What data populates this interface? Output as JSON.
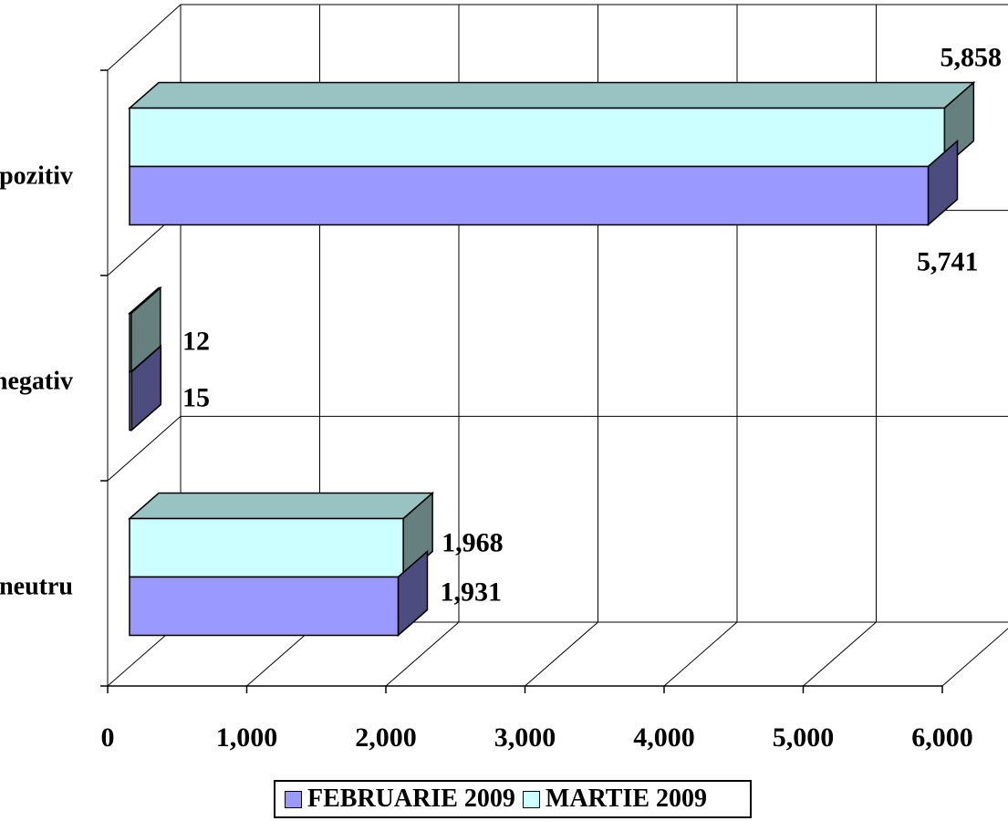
{
  "chart_data": {
    "type": "bar",
    "orientation": "horizontal",
    "categories": [
      "neutru",
      "negativ",
      "pozitiv"
    ],
    "series": [
      {
        "name": "FEBRUARIE 2009",
        "values": [
          1931,
          15,
          5741
        ],
        "labels": [
          "1,931",
          "15",
          "5,741"
        ],
        "color": "#9999ff",
        "side_color": "#4c4c7f"
      },
      {
        "name": "MARTIE 2009",
        "values": [
          1968,
          12,
          5858
        ],
        "labels": [
          "1,968",
          "12",
          "5,858"
        ],
        "color": "#ccffff",
        "top_color": "#99c2c2",
        "side_color": "#66807f"
      }
    ],
    "x_ticks": [
      "0",
      "1,000",
      "2,000",
      "3,000",
      "4,000",
      "5,000",
      "6,000"
    ],
    "xlim": [
      0,
      6000
    ],
    "grid": true,
    "legend_position": "bottom",
    "style": "3d"
  }
}
